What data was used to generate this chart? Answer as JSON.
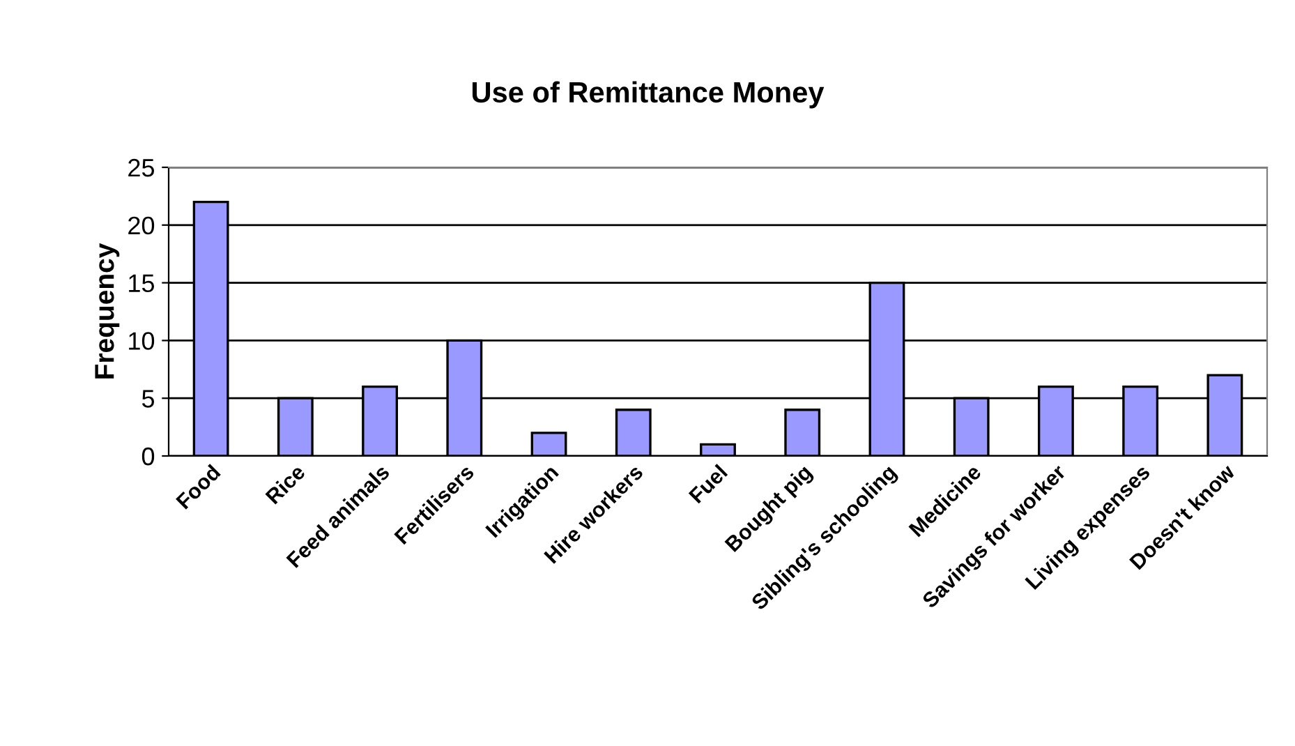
{
  "chart_data": {
    "type": "bar",
    "title": "Use of Remittance Money",
    "ylabel": "Frequency",
    "categories": [
      "Food",
      "Rice",
      "Feed animals",
      "Fertilisers",
      "Irrigation",
      "Hire workers",
      "Fuel",
      "Bought pig",
      "Sibling's schooling",
      "Medicine",
      "Savings for worker",
      "Living expenses",
      "Doesn't know"
    ],
    "values": [
      22,
      5,
      6,
      10,
      2,
      4,
      1,
      4,
      15,
      5,
      6,
      6,
      7
    ],
    "color": "#9999ff",
    "ylim": [
      0,
      25
    ],
    "yticks": [
      0,
      5,
      10,
      15,
      20,
      25
    ],
    "grid": "y",
    "legend": false
  }
}
